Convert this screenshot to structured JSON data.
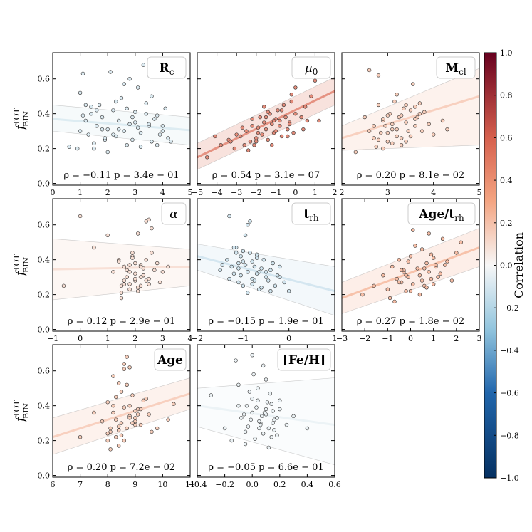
{
  "colors": {
    "background": "#ffffff",
    "panel_box": "#cccccc"
  },
  "shared": {
    "ylabel": "f",
    "ylabel_sup": "TOT",
    "ylabel_sub": "BIN",
    "yticks": [
      "0.0",
      "0.2",
      "0.4",
      "0.6"
    ],
    "ylim": [
      -0.01,
      0.75
    ]
  },
  "colorbar": {
    "label": "Correlation",
    "min": -1.0,
    "max": 1.0,
    "ticks": [
      "1.0",
      "0.8",
      "0.6",
      "0.4",
      "0.2",
      "0.0",
      "−0.2",
      "−0.4",
      "−0.6",
      "−0.8",
      "−1.0"
    ]
  },
  "chart_data": [
    {
      "type": "scatter",
      "tag": "R",
      "tag_sub": "c",
      "xlim": [
        0,
        5
      ],
      "xticks": [
        "0",
        "1",
        "2",
        "3",
        "4",
        "5"
      ],
      "rho": -0.11,
      "annotation": "ρ = −0.11 p = 3.4e − 01",
      "fit": {
        "y0": 0.37,
        "y1": 0.305
      },
      "band": {
        "lo0": 0.3,
        "hi0": 0.45,
        "lo1": 0.22,
        "hi1": 0.38
      },
      "x": [
        0.6,
        1.0,
        1.1,
        1.2,
        1.3,
        1.4,
        1.5,
        1.6,
        1.7,
        1.8,
        1.9,
        2.0,
        2.1,
        2.2,
        2.3,
        2.4,
        2.5,
        2.6,
        2.7,
        2.8,
        2.9,
        3.0,
        3.1,
        3.2,
        3.3,
        3.4,
        3.5,
        3.6,
        3.7,
        3.8,
        3.9,
        4.0,
        4.1,
        4.2,
        1.0,
        1.2,
        1.6,
        2.0,
        2.4,
        2.8,
        3.2,
        3.6,
        4.0,
        1.4,
        1.8,
        2.2,
        2.6,
        3.0,
        3.4,
        3.8,
        1.1,
        1.5,
        2.9,
        3.1,
        2.7,
        1.9,
        2.3,
        3.5,
        4.3,
        0.9
      ],
      "y": [
        0.21,
        0.3,
        0.63,
        0.45,
        0.28,
        0.4,
        0.2,
        0.33,
        0.45,
        0.38,
        0.25,
        0.31,
        0.64,
        0.42,
        0.27,
        0.36,
        0.49,
        0.3,
        0.22,
        0.34,
        0.38,
        0.41,
        0.55,
        0.29,
        0.68,
        0.46,
        0.33,
        0.24,
        0.37,
        0.39,
        0.28,
        0.3,
        0.43,
        0.26,
        0.52,
        0.36,
        0.42,
        0.18,
        0.31,
        0.6,
        0.21,
        0.5,
        0.33,
        0.44,
        0.31,
        0.28,
        0.57,
        0.35,
        0.4,
        0.22,
        0.39,
        0.23,
        0.25,
        0.32,
        0.43,
        0.26,
        0.47,
        0.34,
        0.24,
        0.2
      ]
    },
    {
      "type": "scatter",
      "tag": "μ",
      "tag_sub": "0",
      "tag_italic": true,
      "xlim": [
        -5,
        2
      ],
      "xticks": [
        "−5",
        "−4",
        "−3",
        "−2",
        "−1",
        "0",
        "1",
        "2"
      ],
      "rho": 0.54,
      "annotation": "ρ = 0.54 p = 3.1e − 07",
      "fit": {
        "y0": 0.15,
        "y1": 0.53
      },
      "band": {
        "lo0": 0.08,
        "hi0": 0.23,
        "lo1": 0.45,
        "hi1": 0.61
      },
      "x": [
        -4.5,
        -4.1,
        -3.8,
        -3.4,
        -3.1,
        -3.0,
        -2.8,
        -2.6,
        -2.5,
        -2.3,
        -2.2,
        -2.1,
        -2.0,
        -1.9,
        -1.8,
        -1.7,
        -1.6,
        -1.5,
        -1.4,
        -1.3,
        -1.2,
        -1.1,
        -1.0,
        -0.9,
        -0.8,
        -0.7,
        -0.6,
        -0.5,
        -0.4,
        -0.3,
        -0.2,
        -0.1,
        0.0,
        0.1,
        0.2,
        0.3,
        0.5,
        0.8,
        1.0,
        1.2,
        -2.4,
        -2.0,
        -1.6,
        -1.2,
        -0.8,
        -0.4,
        0.0,
        -1.9,
        -1.5,
        -1.1,
        -0.7,
        -0.3,
        -2.7,
        -3.3,
        -0.2,
        0.4,
        0.6,
        -1.0,
        -1.4,
        -2.2
      ],
      "y": [
        0.15,
        0.27,
        0.22,
        0.25,
        0.2,
        0.28,
        0.27,
        0.22,
        0.3,
        0.24,
        0.33,
        0.22,
        0.26,
        0.32,
        0.38,
        0.28,
        0.35,
        0.31,
        0.25,
        0.4,
        0.34,
        0.29,
        0.37,
        0.42,
        0.33,
        0.27,
        0.45,
        0.38,
        0.31,
        0.35,
        0.51,
        0.29,
        0.4,
        0.65,
        0.68,
        0.38,
        0.44,
        0.5,
        0.59,
        0.36,
        0.19,
        0.24,
        0.44,
        0.22,
        0.36,
        0.27,
        0.55,
        0.29,
        0.38,
        0.36,
        0.42,
        0.34,
        0.32,
        0.24,
        0.47,
        0.31,
        0.36,
        0.3,
        0.41,
        0.37
      ]
    },
    {
      "type": "scatter",
      "tag": "M",
      "tag_sub": "cl",
      "xlim": [
        2,
        5
      ],
      "xticks": [
        "2",
        "3",
        "4",
        "5"
      ],
      "rho": 0.2,
      "annotation": "ρ = 0.20 p = 8.1e − 02",
      "fit": {
        "y0": 0.26,
        "y1": 0.5
      },
      "band": {
        "lo0": 0.19,
        "hi0": 0.33,
        "lo1": 0.22,
        "hi1": 0.66
      },
      "x": [
        2.3,
        2.5,
        2.6,
        2.7,
        2.75,
        2.8,
        2.85,
        2.9,
        2.95,
        3.0,
        3.05,
        3.1,
        3.15,
        3.2,
        3.25,
        3.3,
        3.35,
        3.4,
        3.45,
        3.5,
        3.55,
        3.6,
        3.65,
        3.7,
        3.75,
        3.8,
        3.9,
        4.0,
        4.2,
        4.3,
        2.6,
        2.8,
        3.0,
        3.2,
        3.4,
        3.6,
        2.9,
        3.1,
        3.3,
        3.5,
        2.7,
        3.0,
        3.3,
        3.6,
        2.8,
        3.2,
        3.4,
        3.1,
        2.9,
        3.7
      ],
      "y": [
        0.18,
        0.38,
        0.3,
        0.26,
        0.21,
        0.45,
        0.29,
        0.36,
        0.33,
        0.24,
        0.4,
        0.31,
        0.47,
        0.27,
        0.38,
        0.22,
        0.43,
        0.35,
        0.3,
        0.42,
        0.57,
        0.33,
        0.38,
        0.46,
        0.3,
        0.41,
        0.34,
        0.28,
        0.36,
        0.31,
        0.65,
        0.62,
        0.29,
        0.51,
        0.24,
        0.44,
        0.2,
        0.34,
        0.39,
        0.27,
        0.33,
        0.39,
        0.26,
        0.37,
        0.25,
        0.31,
        0.45,
        0.23,
        0.37,
        0.4
      ]
    },
    {
      "type": "scatter",
      "tag": "α",
      "tag_italic": true,
      "xlim": [
        -1,
        4
      ],
      "xticks": [
        "−1",
        "0",
        "1",
        "2",
        "3",
        "4"
      ],
      "rho": 0.12,
      "annotation": "ρ = 0.12 p = 2.9e − 01",
      "fit": {
        "y0": 0.345,
        "y1": 0.36
      },
      "band": {
        "lo0": 0.17,
        "hi0": 0.52,
        "lo1": 0.25,
        "hi1": 0.46
      },
      "x": [
        -0.6,
        0.0,
        0.5,
        1.0,
        1.2,
        1.4,
        1.5,
        1.6,
        1.7,
        1.8,
        1.9,
        2.0,
        2.1,
        2.2,
        2.3,
        2.4,
        2.5,
        2.6,
        2.7,
        2.8,
        2.9,
        3.0,
        3.2,
        1.5,
        1.7,
        1.9,
        2.1,
        2.3,
        2.5,
        1.6,
        1.8,
        2.0,
        2.2,
        2.4,
        1.4,
        1.6,
        1.8,
        2.0,
        2.2,
        2.6,
        1.5,
        1.9,
        2.3,
        1.7,
        2.1,
        2.5,
        1.8,
        2.0,
        2.2,
        2.4
      ],
      "y": [
        0.25,
        0.65,
        0.47,
        0.54,
        0.33,
        0.4,
        0.25,
        0.36,
        0.3,
        0.23,
        0.42,
        0.28,
        0.55,
        0.37,
        0.31,
        0.62,
        0.26,
        0.44,
        0.34,
        0.38,
        0.27,
        0.33,
        0.36,
        0.21,
        0.3,
        0.41,
        0.24,
        0.35,
        0.29,
        0.28,
        0.37,
        0.32,
        0.25,
        0.4,
        0.39,
        0.26,
        0.33,
        0.29,
        0.36,
        0.58,
        0.18,
        0.44,
        0.31,
        0.34,
        0.22,
        0.63,
        0.26,
        0.38,
        0.3,
        0.28
      ]
    },
    {
      "type": "scatter",
      "tag": "t",
      "tag_sub": "rh",
      "xlim": [
        -2,
        1
      ],
      "xticks": [
        "−2",
        "−1",
        "0",
        "1"
      ],
      "rho": -0.15,
      "annotation": "ρ = −0.15 p = 1.9e − 01",
      "fit": {
        "y0": 0.42,
        "y1": 0.22
      },
      "band": {
        "lo0": 0.34,
        "hi0": 0.49,
        "lo1": 0.08,
        "hi1": 0.36
      },
      "x": [
        -1.5,
        -1.3,
        -1.2,
        -1.15,
        -1.1,
        -1.05,
        -1.0,
        -0.95,
        -0.9,
        -0.85,
        -0.8,
        -0.75,
        -0.7,
        -0.65,
        -0.6,
        -0.55,
        -0.5,
        -0.4,
        -0.3,
        -0.2,
        -0.1,
        0.0,
        -1.25,
        -1.15,
        -1.05,
        -0.95,
        -0.85,
        -0.75,
        -0.65,
        -1.2,
        -1.1,
        -1.0,
        -0.9,
        -0.8,
        -0.7,
        -1.35,
        -0.6,
        -0.5,
        -0.45,
        -0.35,
        -0.25,
        -0.9,
        -1.0,
        -1.1,
        -0.8,
        -0.7,
        -0.2,
        -0.4,
        -1.3,
        -1.45
      ],
      "y": [
        0.34,
        0.65,
        0.32,
        0.47,
        0.38,
        0.42,
        0.25,
        0.54,
        0.33,
        0.44,
        0.29,
        0.36,
        0.41,
        0.23,
        0.35,
        0.4,
        0.3,
        0.34,
        0.25,
        0.3,
        0.27,
        0.22,
        0.36,
        0.44,
        0.31,
        0.37,
        0.62,
        0.28,
        0.33,
        0.47,
        0.27,
        0.39,
        0.21,
        0.39,
        0.32,
        0.4,
        0.24,
        0.33,
        0.28,
        0.38,
        0.31,
        0.6,
        0.45,
        0.35,
        0.26,
        0.43,
        0.36,
        0.22,
        0.29,
        0.37
      ]
    },
    {
      "type": "scatter",
      "tag": "Age/t",
      "tag_sub": "rh",
      "xlim": [
        -3,
        3
      ],
      "xticks": [
        "−3",
        "−2",
        "−1",
        "0",
        "1",
        "2",
        "3"
      ],
      "rho": 0.27,
      "annotation": "ρ = 0.27 p = 1.8e − 02",
      "fit": {
        "y0": 0.18,
        "y1": 0.47
      },
      "band": {
        "lo0": 0.09,
        "hi0": 0.27,
        "lo1": 0.36,
        "hi1": 0.58
      },
      "x": [
        -2.1,
        -1.6,
        -1.2,
        -1.0,
        -0.8,
        -0.6,
        -0.5,
        -0.4,
        -0.3,
        -0.2,
        -0.1,
        0.0,
        0.1,
        0.2,
        0.3,
        0.4,
        0.5,
        0.6,
        0.7,
        0.8,
        0.9,
        1.0,
        1.1,
        1.2,
        1.4,
        1.6,
        1.8,
        2.0,
        2.2,
        -0.7,
        -0.3,
        0.1,
        0.5,
        0.9,
        1.3,
        -0.5,
        -0.1,
        0.3,
        0.7,
        1.1,
        -0.9,
        -0.2,
        0.2,
        0.6,
        1.0,
        0.0,
        0.4,
        0.8,
        -0.4,
        1.5
      ],
      "y": [
        0.2,
        0.25,
        0.31,
        0.23,
        0.36,
        0.29,
        0.4,
        0.27,
        0.33,
        0.22,
        0.3,
        0.42,
        0.26,
        0.62,
        0.35,
        0.31,
        0.46,
        0.25,
        0.38,
        0.33,
        0.29,
        0.41,
        0.36,
        0.3,
        0.52,
        0.39,
        0.28,
        0.44,
        0.5,
        0.16,
        0.34,
        0.57,
        0.28,
        0.43,
        0.32,
        0.27,
        0.39,
        0.65,
        0.24,
        0.37,
        0.18,
        0.31,
        0.48,
        0.35,
        0.26,
        0.22,
        0.2,
        0.55,
        0.34,
        0.37
      ]
    },
    {
      "type": "scatter",
      "tag": "Age",
      "xlim": [
        6,
        11
      ],
      "xticks": [
        "6",
        "7",
        "8",
        "9",
        "10",
        "11"
      ],
      "rho": 0.2,
      "annotation": "ρ = 0.20 p = 7.2e − 02",
      "fit": {
        "y0": 0.22,
        "y1": 0.47
      },
      "band": {
        "lo0": 0.12,
        "hi0": 0.33,
        "lo1": 0.38,
        "hi1": 0.56
      },
      "x": [
        7.0,
        7.5,
        7.8,
        8.0,
        8.1,
        8.2,
        8.3,
        8.4,
        8.5,
        8.6,
        8.7,
        8.8,
        8.9,
        9.0,
        9.1,
        9.2,
        9.3,
        9.5,
        9.8,
        10.2,
        10.4,
        8.0,
        8.2,
        8.4,
        8.6,
        8.8,
        9.0,
        8.1,
        8.3,
        8.5,
        8.7,
        8.9,
        9.1,
        8.2,
        8.4,
        8.6,
        8.8,
        9.0,
        8.0,
        8.5,
        9.0,
        8.3,
        8.7,
        9.2,
        8.1,
        8.6,
        9.4,
        8.4,
        8.8,
        9.6
      ],
      "y": [
        0.22,
        0.36,
        0.31,
        0.42,
        0.25,
        0.36,
        0.22,
        0.53,
        0.3,
        0.64,
        0.27,
        0.4,
        0.46,
        0.33,
        0.38,
        0.29,
        0.43,
        0.35,
        0.27,
        0.32,
        0.41,
        0.2,
        0.4,
        0.28,
        0.61,
        0.34,
        0.37,
        0.15,
        0.45,
        0.23,
        0.68,
        0.3,
        0.35,
        0.57,
        0.26,
        0.39,
        0.62,
        0.31,
        0.24,
        0.48,
        0.29,
        0.32,
        0.52,
        0.38,
        0.27,
        0.2,
        0.44,
        0.17,
        0.33,
        0.25
      ]
    },
    {
      "type": "scatter",
      "tag": "[Fe/H]",
      "xlim": [
        -0.4,
        0.6
      ],
      "xticks": [
        "−0.4",
        "−0.2",
        "0.0",
        "0.2",
        "0.4",
        "0.6"
      ],
      "rho": -0.05,
      "annotation": "ρ = −0.05 p = 6.6e − 01",
      "fit": {
        "y0": 0.4,
        "y1": 0.29
      },
      "band": {
        "lo0": 0.28,
        "hi0": 0.5,
        "lo1": 0.06,
        "hi1": 0.56
      },
      "x": [
        -0.3,
        -0.2,
        -0.15,
        -0.1,
        -0.08,
        -0.05,
        -0.02,
        0.0,
        0.02,
        0.04,
        0.06,
        0.08,
        0.1,
        0.12,
        0.14,
        0.16,
        0.18,
        0.2,
        0.25,
        0.3,
        0.4,
        -0.1,
        -0.05,
        0.0,
        0.05,
        0.1,
        0.15,
        -0.12,
        -0.03,
        0.03,
        0.08,
        0.13,
        0.18,
        -0.06,
        0.01,
        0.06,
        0.11,
        0.16,
        -0.01,
        0.04,
        0.09,
        0.14,
        0.0,
        0.05,
        0.1,
        0.15,
        0.2,
        -0.04,
        0.07,
        0.12
      ],
      "y": [
        0.46,
        0.27,
        0.2,
        0.4,
        0.33,
        0.25,
        0.48,
        0.36,
        0.21,
        0.43,
        0.3,
        0.63,
        0.35,
        0.27,
        0.41,
        0.32,
        0.23,
        0.38,
        0.29,
        0.34,
        0.27,
        0.52,
        0.18,
        0.44,
        0.31,
        0.55,
        0.37,
        0.66,
        0.28,
        0.39,
        0.24,
        0.47,
        0.33,
        0.35,
        0.58,
        0.29,
        0.42,
        0.26,
        0.32,
        0.5,
        0.36,
        0.22,
        0.69,
        0.27,
        0.38,
        0.3,
        0.43,
        0.4,
        0.34,
        0.16
      ]
    }
  ]
}
